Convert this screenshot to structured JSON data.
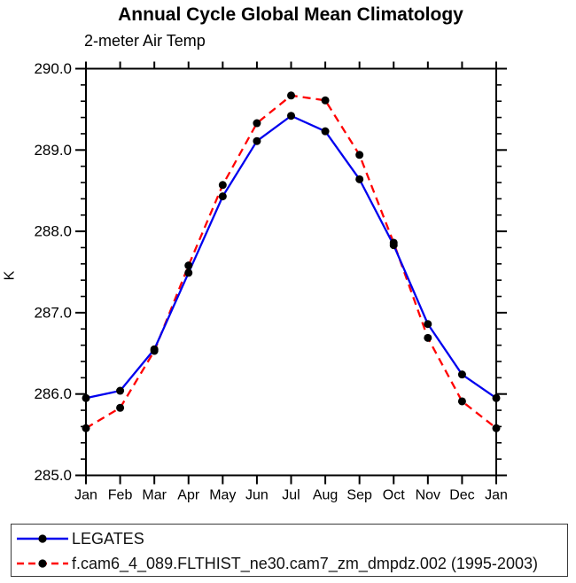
{
  "title": "Annual Cycle Global Mean Climatology",
  "subtitle": "2-meter Air Temp",
  "chart_data": {
    "type": "line",
    "categories": [
      "Jan",
      "Feb",
      "Mar",
      "Apr",
      "May",
      "Jun",
      "Jul",
      "Aug",
      "Sep",
      "Oct",
      "Nov",
      "Dec",
      "Jan"
    ],
    "series": [
      {
        "name": "LEGATES",
        "color": "#0000ee",
        "dash": "solid",
        "values": [
          285.95,
          286.04,
          286.55,
          287.49,
          288.43,
          289.11,
          289.42,
          289.23,
          288.64,
          287.83,
          286.86,
          286.24,
          285.95
        ]
      },
      {
        "name": "f.cam6_4_089.FLTHIST_ne30.cam7_zm_dmpdz.002 (1995-2003)",
        "color": "#ff0000",
        "dash": "dashed",
        "values": [
          285.58,
          285.83,
          286.53,
          287.58,
          288.57,
          289.33,
          289.67,
          289.61,
          288.94,
          287.86,
          286.69,
          285.91,
          285.58
        ]
      }
    ],
    "title": "Annual Cycle Global Mean Climatology",
    "subtitle": "2-meter Air Temp",
    "xlabel": "",
    "ylabel": "K",
    "ylim": [
      285.0,
      290.0
    ],
    "ytick_labels": [
      "285.0",
      "286.0",
      "287.0",
      "288.0",
      "289.0",
      "290.0"
    ],
    "y_major_step": 1.0,
    "y_minor_step": 0.2,
    "grid": false,
    "legend_position": "bottom",
    "marker": {
      "shape": "circle",
      "color": "#000000",
      "radius": 4.5
    },
    "axis_color": "#000000"
  },
  "legend": {
    "entries": [
      {
        "label": "LEGATES"
      },
      {
        "label": "f.cam6_4_089.FLTHIST_ne30.cam7_zm_dmpdz.002 (1995-2003)"
      }
    ]
  }
}
